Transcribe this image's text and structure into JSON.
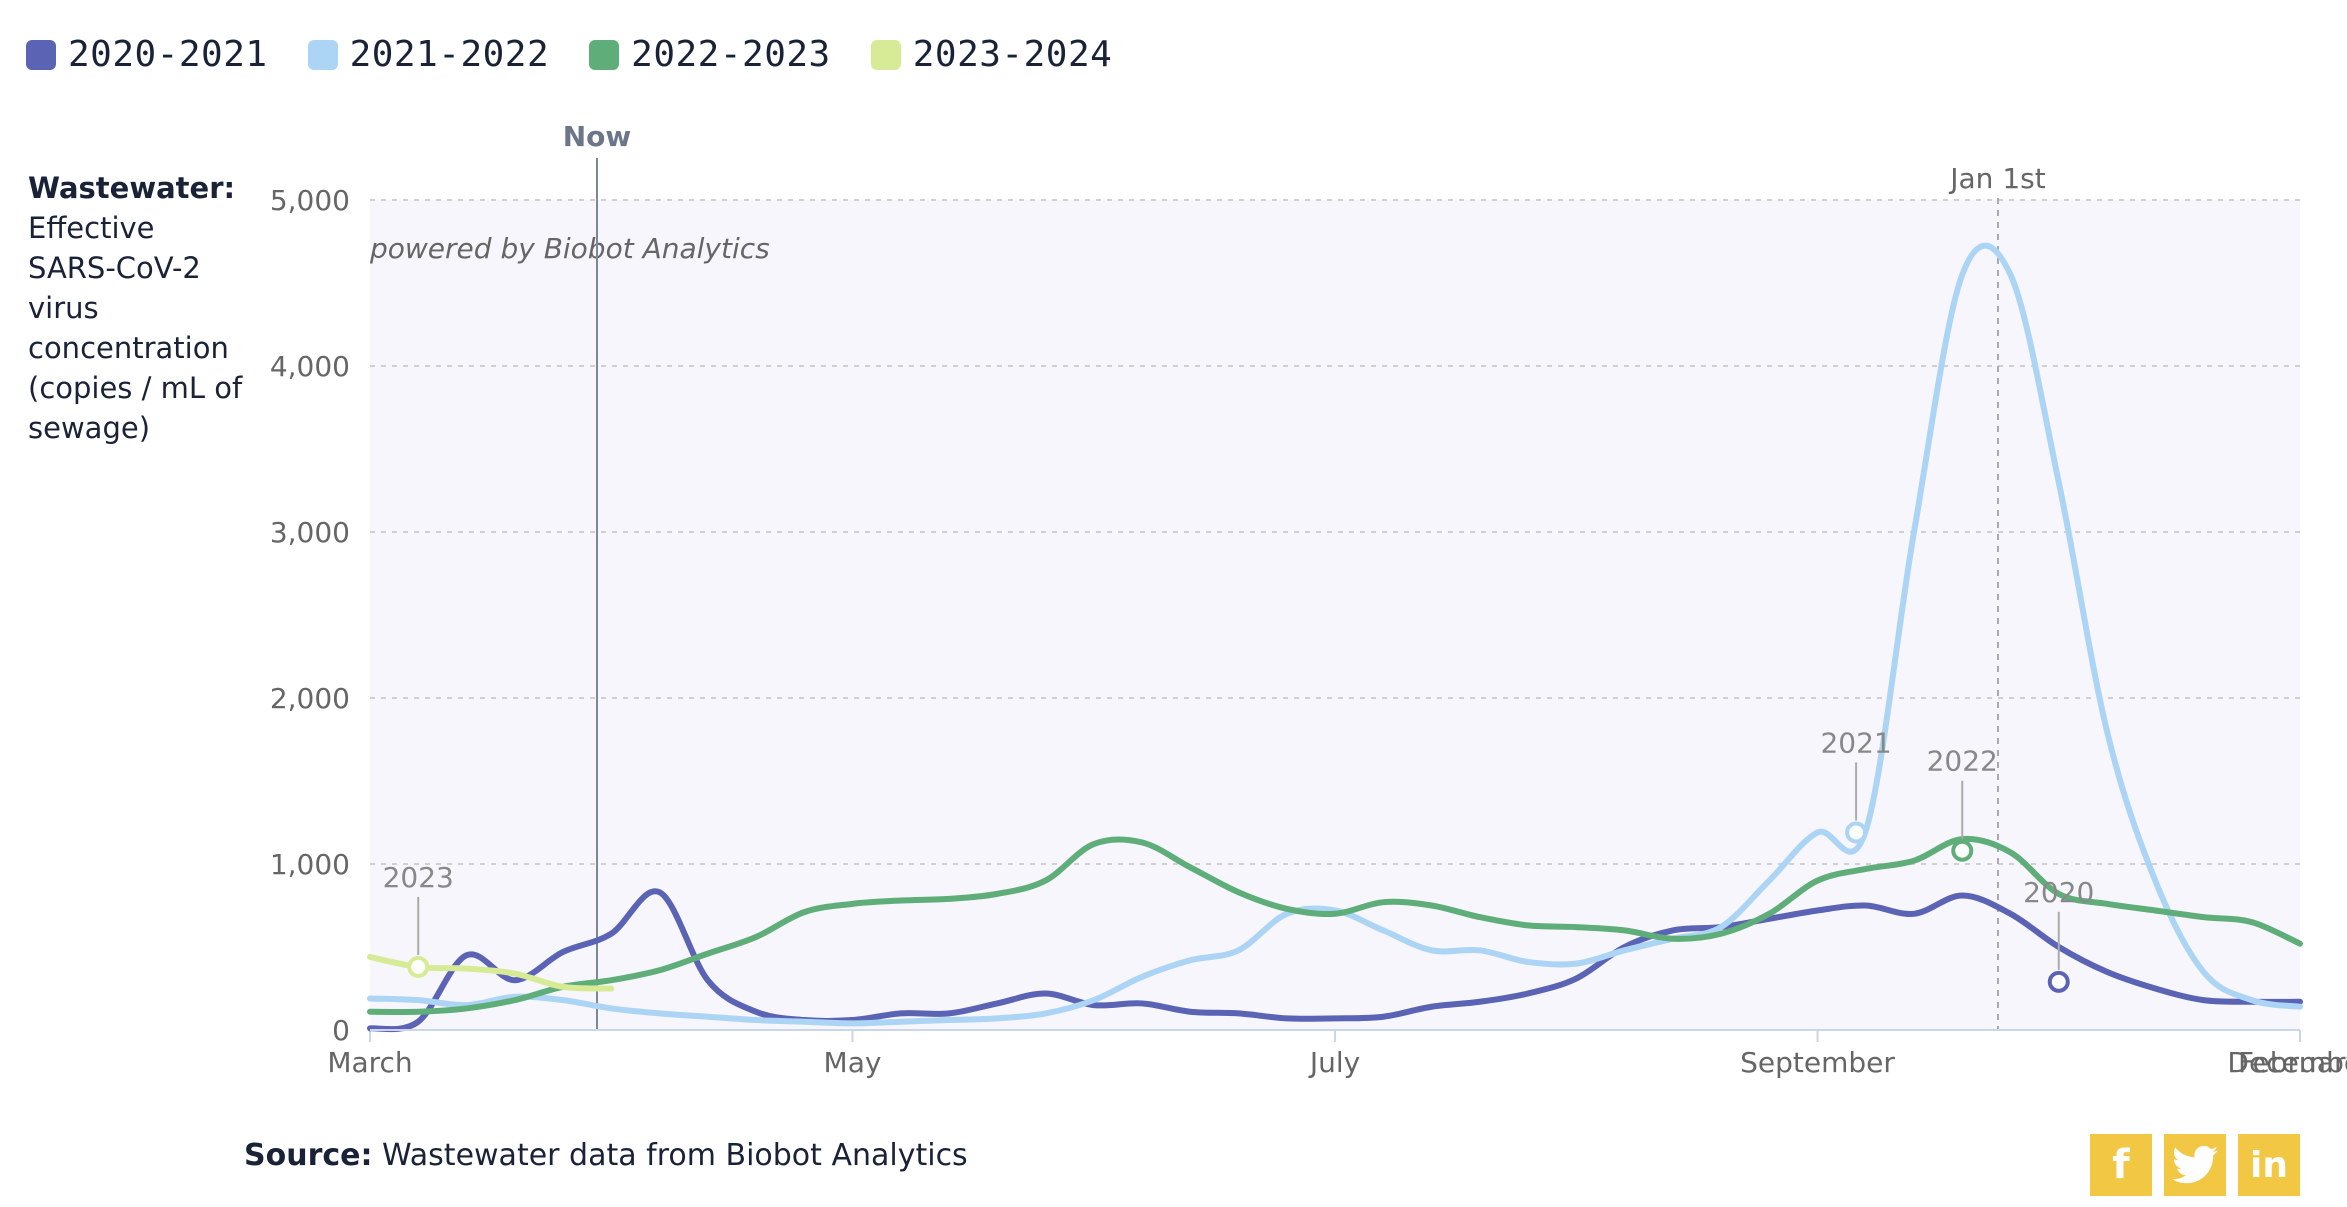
{
  "legend": [
    {
      "label": "2020-2021",
      "color": "#5b63b5"
    },
    {
      "label": "2021-2022",
      "color": "#acd4f4"
    },
    {
      "label": "2022-2023",
      "color": "#5fae7a"
    },
    {
      "label": "2023-2024",
      "color": "#d7eb96"
    }
  ],
  "yaxis": {
    "title_bold": "Wastewater:",
    "title_rest": "Effective SARS-CoV-2 virus concentration (copies / mL of sewage)"
  },
  "annotations": {
    "now_label": "Now",
    "jan_label": "Jan 1st",
    "watermark": "powered by Biobot Analytics"
  },
  "source": {
    "bold": "Source:",
    "text": "Wastewater data from Biobot Analytics"
  },
  "share": {
    "facebook_icon": "facebook-icon",
    "twitter_icon": "twitter-icon",
    "linkedin_icon": "linkedin-icon"
  },
  "chart_data": {
    "type": "line",
    "x_axis_type": "month-of-season",
    "x_ticks": [
      "March",
      "May",
      "July",
      "September",
      "December",
      "February"
    ],
    "y_ticks": [
      "0",
      "1,000",
      "2,000",
      "3,000",
      "4,000",
      "5,000"
    ],
    "ylim": [
      0,
      5000
    ],
    "grid": true,
    "now_marker_x": "late March",
    "jan1_marker": "Jan 1st",
    "series": [
      {
        "name": "2020-2021",
        "color": "#5b63b5",
        "label": "2020",
        "label_at": [
          35.0,
          290
        ],
        "points": [
          [
            0,
            10
          ],
          [
            1,
            50
          ],
          [
            2,
            450
          ],
          [
            3,
            300
          ],
          [
            4,
            470
          ],
          [
            5,
            580
          ],
          [
            6,
            830
          ],
          [
            7,
            300
          ],
          [
            8,
            110
          ],
          [
            9,
            60
          ],
          [
            10,
            60
          ],
          [
            11,
            100
          ],
          [
            12,
            100
          ],
          [
            13,
            160
          ],
          [
            14,
            220
          ],
          [
            15,
            150
          ],
          [
            16,
            160
          ],
          [
            17,
            110
          ],
          [
            18,
            100
          ],
          [
            19,
            70
          ],
          [
            20,
            70
          ],
          [
            21,
            80
          ],
          [
            22,
            140
          ],
          [
            23,
            170
          ],
          [
            24,
            220
          ],
          [
            25,
            310
          ],
          [
            26,
            500
          ],
          [
            27,
            600
          ],
          [
            28,
            620
          ],
          [
            29,
            670
          ],
          [
            30,
            720
          ],
          [
            31,
            750
          ],
          [
            32,
            700
          ],
          [
            33,
            810
          ],
          [
            34,
            700
          ],
          [
            35,
            500
          ],
          [
            36,
            350
          ],
          [
            37,
            250
          ],
          [
            38,
            180
          ],
          [
            39,
            170
          ],
          [
            40,
            170
          ]
        ]
      },
      {
        "name": "2021-2022",
        "color": "#acd4f4",
        "label": "2021",
        "label_at": [
          30.8,
          1190
        ],
        "points": [
          [
            0,
            190
          ],
          [
            1,
            180
          ],
          [
            2,
            150
          ],
          [
            3,
            200
          ],
          [
            4,
            180
          ],
          [
            5,
            130
          ],
          [
            6,
            100
          ],
          [
            7,
            80
          ],
          [
            8,
            60
          ],
          [
            9,
            50
          ],
          [
            10,
            40
          ],
          [
            11,
            50
          ],
          [
            12,
            60
          ],
          [
            13,
            70
          ],
          [
            14,
            100
          ],
          [
            15,
            180
          ],
          [
            16,
            320
          ],
          [
            17,
            420
          ],
          [
            18,
            480
          ],
          [
            19,
            700
          ],
          [
            20,
            720
          ],
          [
            21,
            600
          ],
          [
            22,
            480
          ],
          [
            23,
            480
          ],
          [
            24,
            410
          ],
          [
            25,
            400
          ],
          [
            26,
            480
          ],
          [
            27,
            550
          ],
          [
            28,
            620
          ],
          [
            29,
            900
          ],
          [
            30,
            1190
          ],
          [
            31,
            1200
          ],
          [
            32,
            3000
          ],
          [
            33,
            4550
          ],
          [
            34,
            4550
          ],
          [
            35,
            3300
          ],
          [
            36,
            1800
          ],
          [
            37,
            900
          ],
          [
            38,
            350
          ],
          [
            39,
            180
          ],
          [
            40,
            140
          ]
        ]
      },
      {
        "name": "2022-2023",
        "color": "#5fae7a",
        "label": "2022",
        "label_at": [
          33.0,
          1080
        ],
        "points": [
          [
            0,
            110
          ],
          [
            1,
            110
          ],
          [
            2,
            130
          ],
          [
            3,
            180
          ],
          [
            4,
            260
          ],
          [
            5,
            300
          ],
          [
            6,
            360
          ],
          [
            7,
            460
          ],
          [
            8,
            560
          ],
          [
            9,
            710
          ],
          [
            10,
            760
          ],
          [
            11,
            780
          ],
          [
            12,
            790
          ],
          [
            13,
            820
          ],
          [
            14,
            900
          ],
          [
            15,
            1120
          ],
          [
            16,
            1130
          ],
          [
            17,
            980
          ],
          [
            18,
            830
          ],
          [
            19,
            730
          ],
          [
            20,
            700
          ],
          [
            21,
            770
          ],
          [
            22,
            750
          ],
          [
            23,
            680
          ],
          [
            24,
            630
          ],
          [
            25,
            620
          ],
          [
            26,
            600
          ],
          [
            27,
            550
          ],
          [
            28,
            580
          ],
          [
            29,
            700
          ],
          [
            30,
            900
          ],
          [
            31,
            970
          ],
          [
            32,
            1020
          ],
          [
            33,
            1150
          ],
          [
            34,
            1070
          ],
          [
            35,
            820
          ],
          [
            36,
            760
          ],
          [
            37,
            720
          ],
          [
            38,
            680
          ],
          [
            39,
            650
          ],
          [
            40,
            520
          ]
        ]
      },
      {
        "name": "2023-2024",
        "color": "#d7eb96",
        "label": "2023",
        "label_at": [
          1.0,
          380
        ],
        "points": [
          [
            0,
            440
          ],
          [
            1,
            380
          ],
          [
            2,
            370
          ],
          [
            3,
            340
          ],
          [
            4,
            260
          ],
          [
            5,
            250
          ]
        ]
      }
    ]
  }
}
